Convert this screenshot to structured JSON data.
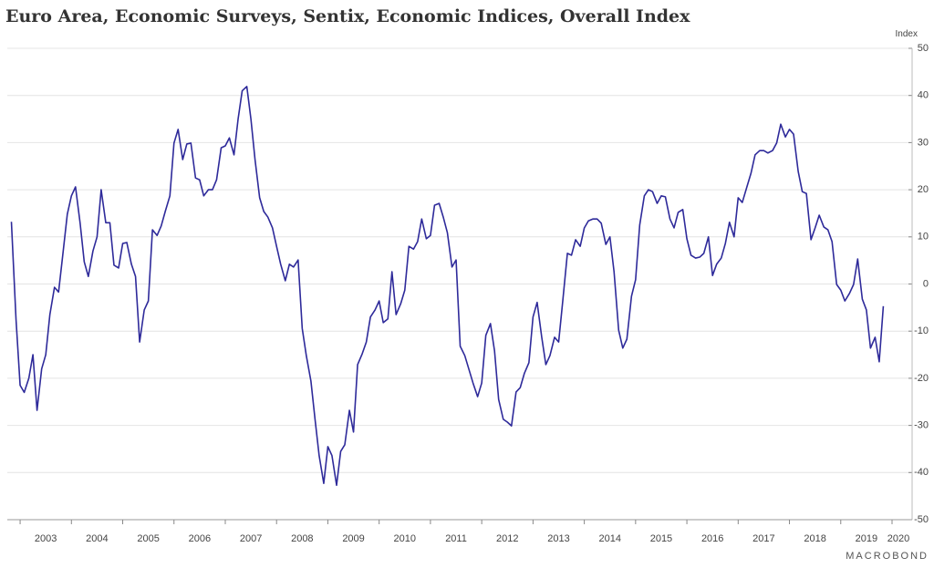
{
  "chart_data": {
    "type": "line",
    "title": "Euro Area, Economic Surveys, Sentix, Economic Indices, Overall Index",
    "y_axis_label": "Index",
    "watermark": "MACROBOND",
    "color": "#2e2a9a",
    "grid": true,
    "y_axis_side": "right",
    "xlim": [
      2002.75,
      2020
    ],
    "xticks": [
      2003,
      2004,
      2005,
      2006,
      2007,
      2008,
      2009,
      2010,
      2011,
      2012,
      2013,
      2014,
      2015,
      2016,
      2017,
      2018,
      2019,
      2020
    ],
    "ylim": [
      -50,
      50
    ],
    "yticks": [
      -50,
      -40,
      -30,
      -20,
      -10,
      0,
      10,
      20,
      30,
      40,
      50
    ],
    "x": [
      2002.83,
      2002.92,
      2003.0,
      2003.08,
      2003.17,
      2003.25,
      2003.33,
      2003.42,
      2003.5,
      2003.58,
      2003.67,
      2003.75,
      2003.83,
      2003.92,
      2004.0,
      2004.08,
      2004.17,
      2004.25,
      2004.33,
      2004.42,
      2004.5,
      2004.58,
      2004.67,
      2004.75,
      2004.83,
      2004.92,
      2005.0,
      2005.08,
      2005.17,
      2005.25,
      2005.33,
      2005.42,
      2005.5,
      2005.58,
      2005.67,
      2005.75,
      2005.83,
      2005.92,
      2006.0,
      2006.08,
      2006.17,
      2006.25,
      2006.33,
      2006.42,
      2006.5,
      2006.58,
      2006.67,
      2006.75,
      2006.83,
      2006.92,
      2007.0,
      2007.08,
      2007.17,
      2007.25,
      2007.33,
      2007.42,
      2007.5,
      2007.58,
      2007.67,
      2007.75,
      2007.83,
      2007.92,
      2008.0,
      2008.08,
      2008.17,
      2008.25,
      2008.33,
      2008.42,
      2008.5,
      2008.58,
      2008.67,
      2008.75,
      2008.83,
      2008.92,
      2009.0,
      2009.08,
      2009.17,
      2009.25,
      2009.33,
      2009.42,
      2009.5,
      2009.58,
      2009.67,
      2009.75,
      2009.83,
      2009.92,
      2010.0,
      2010.08,
      2010.17,
      2010.25,
      2010.33,
      2010.42,
      2010.5,
      2010.58,
      2010.67,
      2010.75,
      2010.83,
      2010.92,
      2011.0,
      2011.08,
      2011.17,
      2011.25,
      2011.33,
      2011.42,
      2011.5,
      2011.58,
      2011.67,
      2011.75,
      2011.83,
      2011.92,
      2012.0,
      2012.08,
      2012.17,
      2012.25,
      2012.33,
      2012.42,
      2012.5,
      2012.58,
      2012.67,
      2012.75,
      2012.83,
      2012.92,
      2013.0,
      2013.08,
      2013.17,
      2013.25,
      2013.33,
      2013.42,
      2013.5,
      2013.58,
      2013.67,
      2013.75,
      2013.83,
      2013.92,
      2014.0,
      2014.08,
      2014.17,
      2014.25,
      2014.33,
      2014.42,
      2014.5,
      2014.58,
      2014.67,
      2014.75,
      2014.83,
      2014.92,
      2015.0,
      2015.08,
      2015.17,
      2015.25,
      2015.33,
      2015.42,
      2015.5,
      2015.58,
      2015.67,
      2015.75,
      2015.83,
      2015.92,
      2016.0,
      2016.08,
      2016.17,
      2016.25,
      2016.33,
      2016.42,
      2016.5,
      2016.58,
      2016.67,
      2016.75,
      2016.83,
      2016.92,
      2017.0,
      2017.08,
      2017.17,
      2017.25,
      2017.33,
      2017.42,
      2017.5,
      2017.58,
      2017.67,
      2017.75,
      2017.83,
      2017.92,
      2018.0,
      2018.08,
      2018.17,
      2018.25,
      2018.33,
      2018.42,
      2018.5,
      2018.58,
      2018.67,
      2018.75,
      2018.83,
      2018.92,
      2019.0,
      2019.08,
      2019.17,
      2019.25,
      2019.33,
      2019.42,
      2019.5,
      2019.58,
      2019.67,
      2019.75,
      2019.83
    ],
    "values": [
      13.2,
      -7.5,
      -21.5,
      -23,
      -20,
      -15,
      -26.8,
      -18,
      -15,
      -6.5,
      -0.7,
      -1.7,
      6,
      14.8,
      18.7,
      20.6,
      12.9,
      4.7,
      1.6,
      7,
      10,
      20,
      13,
      13,
      4,
      3.4,
      8.6,
      8.8,
      4.2,
      1.6,
      -12.3,
      -5.5,
      -3.6,
      11.5,
      10.3,
      12.3,
      15.4,
      18.7,
      29.9,
      32.8,
      26.4,
      29.7,
      29.9,
      22.5,
      22.1,
      18.7,
      20,
      20,
      22.1,
      28.9,
      29.3,
      31,
      27.4,
      35,
      41,
      41.9,
      35,
      26.4,
      18.3,
      15.4,
      14.2,
      11.9,
      8,
      4.2,
      0.7,
      4.2,
      3.6,
      5.1,
      -9.4,
      -15.2,
      -20.6,
      -28.7,
      -36.4,
      -42.3,
      -34.5,
      -36.4,
      -42.7,
      -35.5,
      -34.1,
      -26.8,
      -31.4,
      -17.1,
      -14.8,
      -12.3,
      -7,
      -5.5,
      -3.6,
      -8.2,
      -7.4,
      2.6,
      -6.5,
      -4.2,
      -1.3,
      8,
      7.4,
      9,
      13.8,
      9.6,
      10.3,
      16.7,
      17.1,
      14.2,
      10.9,
      3.6,
      5.1,
      -13.2,
      -15.2,
      -18.1,
      -21,
      -23.9,
      -21,
      -10.9,
      -8.4,
      -14.2,
      -24.5,
      -28.7,
      -29.3,
      -30.1,
      -22.9,
      -22,
      -19,
      -16.7,
      -7,
      -3.9,
      -11.3,
      -17.1,
      -15.2,
      -11.3,
      -12.3,
      -3.6,
      6.5,
      6.1,
      9.4,
      8,
      11.9,
      13.4,
      13.8,
      13.8,
      12.9,
      8.4,
      10,
      2.6,
      -9.8,
      -13.6,
      -11.7,
      -2.6,
      0.9,
      12.5,
      18.7,
      20,
      19.6,
      17.1,
      18.7,
      18.5,
      13.8,
      11.9,
      15.2,
      15.8,
      9.6,
      6.1,
      5.5,
      5.7,
      6.5,
      10,
      1.8,
      4.2,
      5.5,
      8.6,
      13.1,
      10,
      18.3,
      17.3,
      20.6,
      23.5,
      27.4,
      28.3,
      28.3,
      27.8,
      28.3,
      29.9,
      33.9,
      31.2,
      32.8,
      31.8,
      23.9,
      19.6,
      19.2,
      9.4,
      11.9,
      14.6,
      12.1,
      11.5,
      9,
      -0.1,
      -1.3,
      -3.6,
      -2,
      -0.1,
      5.3,
      -3.2,
      -5.5,
      -13.6,
      -11.3,
      -16.5,
      -4.7
    ]
  }
}
